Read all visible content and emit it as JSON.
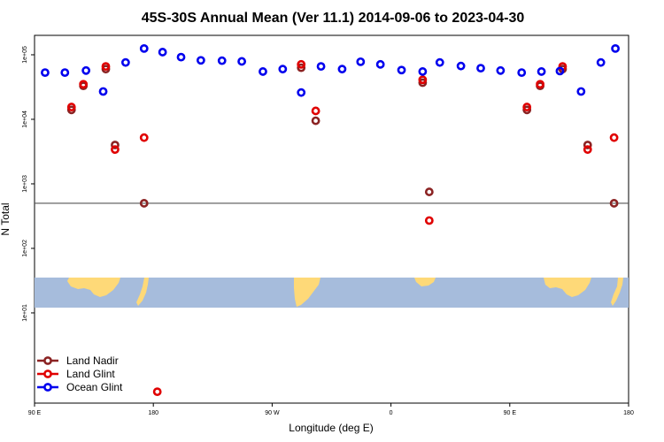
{
  "chart_data": {
    "type": "scatter",
    "title": "45S-30S Annual Mean (Ver 11.1)   2014-09-06 to 2023-04-30",
    "xlabel": "Longitude (deg E)",
    "ylabel": "N Total",
    "y_scale": "log",
    "xlim": [
      90,
      540
    ],
    "ylim": [
      0.4,
      200000
    ],
    "x_ticks": [
      {
        "value": 90,
        "label": "90 E"
      },
      {
        "value": 180,
        "label": "180"
      },
      {
        "value": 270,
        "label": "90 W"
      },
      {
        "value": 360,
        "label": "0"
      },
      {
        "value": 450,
        "label": "90 E"
      },
      {
        "value": 540,
        "label": "180"
      }
    ],
    "y_ticks": [
      {
        "value": 10,
        "label": "1e+01"
      },
      {
        "value": 100,
        "label": "1e+02"
      },
      {
        "value": 1000,
        "label": "1e+03"
      },
      {
        "value": 10000,
        "label": "1e+04"
      },
      {
        "value": 100000,
        "label": "1e+05"
      }
    ],
    "reference_line": 500,
    "legend_position": "bottom-left",
    "series": [
      {
        "name": "Land Nadir",
        "color": "#8b2323",
        "points": [
          {
            "x": 118,
            "y": 14000
          },
          {
            "x": 127,
            "y": 33000
          },
          {
            "x": 144,
            "y": 60000
          },
          {
            "x": 151,
            "y": 4000
          },
          {
            "x": 173,
            "y": 500
          },
          {
            "x": 292,
            "y": 63000
          },
          {
            "x": 303,
            "y": 9500
          },
          {
            "x": 384,
            "y": 37000
          },
          {
            "x": 389,
            "y": 750
          },
          {
            "x": 463,
            "y": 14000
          },
          {
            "x": 473,
            "y": 33000
          },
          {
            "x": 490,
            "y": 60000
          },
          {
            "x": 509,
            "y": 4000
          },
          {
            "x": 529,
            "y": 500
          }
        ]
      },
      {
        "name": "Land Glint",
        "color": "#e00000",
        "points": [
          {
            "x": 118,
            "y": 15500
          },
          {
            "x": 127,
            "y": 35000
          },
          {
            "x": 144,
            "y": 66000
          },
          {
            "x": 151,
            "y": 3400
          },
          {
            "x": 173,
            "y": 5200
          },
          {
            "x": 183,
            "y": 0.6
          },
          {
            "x": 292,
            "y": 71000
          },
          {
            "x": 303,
            "y": 13500
          },
          {
            "x": 384,
            "y": 41000
          },
          {
            "x": 389,
            "y": 270
          },
          {
            "x": 463,
            "y": 15500
          },
          {
            "x": 473,
            "y": 35000
          },
          {
            "x": 490,
            "y": 66000
          },
          {
            "x": 509,
            "y": 3400
          },
          {
            "x": 529,
            "y": 5200
          }
        ]
      },
      {
        "name": "Ocean Glint",
        "color": "#0000ee",
        "points": [
          {
            "x": 98,
            "y": 53000
          },
          {
            "x": 113,
            "y": 53000
          },
          {
            "x": 129,
            "y": 57000
          },
          {
            "x": 142,
            "y": 27000
          },
          {
            "x": 159,
            "y": 76000
          },
          {
            "x": 173,
            "y": 125000
          },
          {
            "x": 187,
            "y": 110000
          },
          {
            "x": 201,
            "y": 92000
          },
          {
            "x": 216,
            "y": 82000
          },
          {
            "x": 232,
            "y": 81000
          },
          {
            "x": 247,
            "y": 79000
          },
          {
            "x": 263,
            "y": 55000
          },
          {
            "x": 278,
            "y": 60000
          },
          {
            "x": 292,
            "y": 26000
          },
          {
            "x": 307,
            "y": 66000
          },
          {
            "x": 323,
            "y": 60000
          },
          {
            "x": 337,
            "y": 78000
          },
          {
            "x": 352,
            "y": 71000
          },
          {
            "x": 368,
            "y": 58000
          },
          {
            "x": 384,
            "y": 55000
          },
          {
            "x": 397,
            "y": 76000
          },
          {
            "x": 413,
            "y": 67000
          },
          {
            "x": 428,
            "y": 62000
          },
          {
            "x": 443,
            "y": 57000
          },
          {
            "x": 459,
            "y": 53000
          },
          {
            "x": 474,
            "y": 55000
          },
          {
            "x": 488,
            "y": 56000
          },
          {
            "x": 504,
            "y": 27000
          },
          {
            "x": 519,
            "y": 76000
          },
          {
            "x": 530,
            "y": 125000
          }
        ]
      }
    ]
  }
}
